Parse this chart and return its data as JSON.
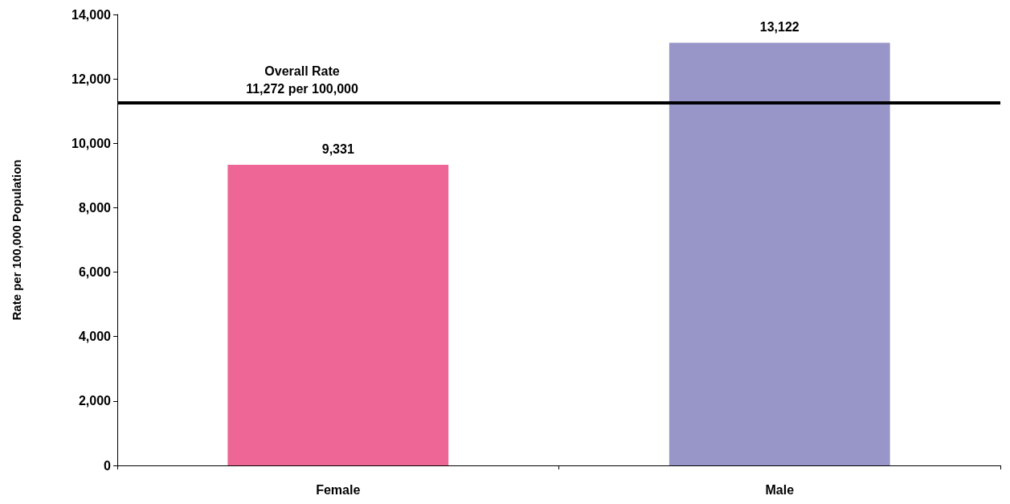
{
  "chart_data": {
    "type": "bar",
    "ylabel": "Rate per 100,000 Population",
    "categories": [
      "Female",
      "Male"
    ],
    "values": [
      9331,
      13122
    ],
    "value_labels": [
      "9,331",
      "13,122"
    ],
    "colors": [
      "#ee6696",
      "#9896c9"
    ],
    "ylim": [
      0,
      14000
    ],
    "yticks": [
      0,
      {
        "value": 2000,
        "label": "2,000"
      },
      {
        "value": 4000,
        "label": "4,000"
      },
      {
        "value": 6000,
        "label": "6,000"
      },
      {
        "value": 8000,
        "label": "8,000"
      },
      {
        "value": 10000,
        "label": "10,000"
      },
      {
        "value": 12000,
        "label": "12,000"
      },
      {
        "value": 14000,
        "label": "14,000"
      }
    ],
    "grid": false,
    "ref_lines": [
      {
        "axis": "y",
        "value": 11272,
        "label": "Overall Rate\n11,272 per 100,000",
        "color": "#000000",
        "line_style": "solid"
      }
    ]
  }
}
